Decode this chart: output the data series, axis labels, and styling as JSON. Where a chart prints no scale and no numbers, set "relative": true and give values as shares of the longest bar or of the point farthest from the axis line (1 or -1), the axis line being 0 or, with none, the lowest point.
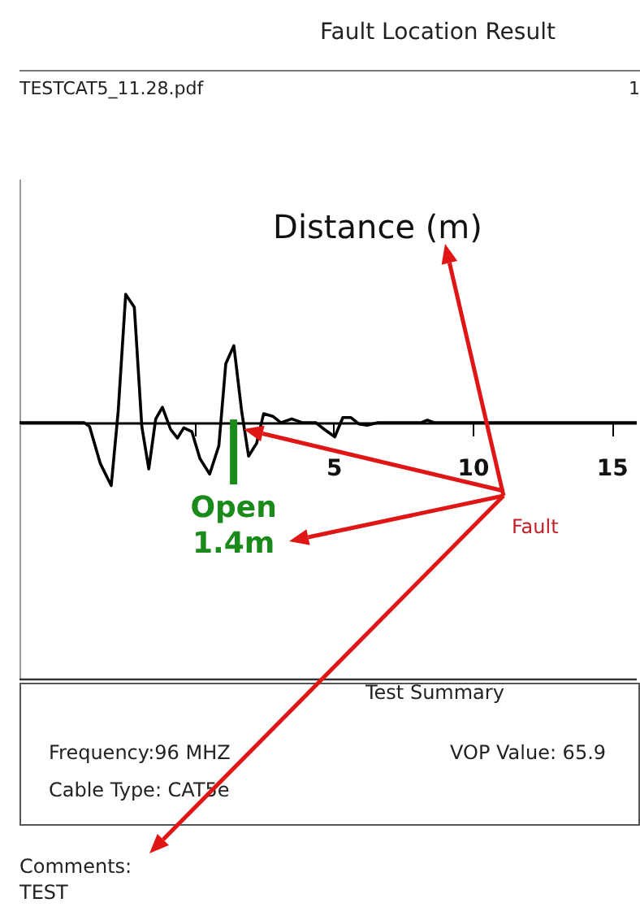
{
  "chart_data": {
    "type": "line",
    "title": "Fault Location Result",
    "subtitle": "TESTCAT5_11.28.pdf",
    "xlabel": "Distance (m)",
    "relative": true,
    "x": [
      -6.3,
      -3.97,
      -3.78,
      -3.39,
      -3.0,
      -2.75,
      -2.48,
      -2.17,
      -1.9,
      -1.65,
      -1.4,
      -1.16,
      -0.87,
      -0.62,
      -0.39,
      -0.1,
      0.19,
      0.54,
      0.87,
      1.12,
      1.41,
      1.69,
      1.94,
      2.23,
      2.48,
      2.81,
      3.1,
      3.49,
      3.88,
      4.36,
      4.65,
      5.04,
      5.33,
      5.62,
      5.91,
      6.2,
      6.59,
      8.14,
      8.37,
      8.62,
      15.9
    ],
    "series": [
      {
        "color": "#000000",
        "values": [
          0,
          0,
          -0.03,
          -0.32,
          -0.49,
          0.09,
          1,
          0.9,
          -0.03,
          -0.36,
          0.03,
          0.12,
          -0.05,
          -0.12,
          -0.04,
          -0.07,
          -0.28,
          -0.4,
          -0.18,
          0.46,
          0.6,
          0.09,
          -0.26,
          -0.16,
          0.07,
          0.05,
          0,
          0.03,
          0,
          0,
          -0.05,
          -0.11,
          0.04,
          0.04,
          -0.01,
          -0.02,
          0,
          0,
          0.02,
          0,
          0
        ]
      }
    ],
    "xlim": [
      -6.3,
      15.9
    ],
    "xticks": [
      {
        "value": 0,
        "label": null
      },
      5,
      10,
      15
    ],
    "ref_lines": [
      {
        "axis": "x",
        "value": 1.4,
        "label": "Open 1.4m",
        "color": "#1a8a1a"
      }
    ],
    "annotations": [
      "Fault",
      "Test Summary",
      "Frequency:96 MHZ",
      "VOP Value: 65.9",
      "Cable Type: CAT5e",
      "Comments:",
      "TEST",
      "1"
    ]
  }
}
